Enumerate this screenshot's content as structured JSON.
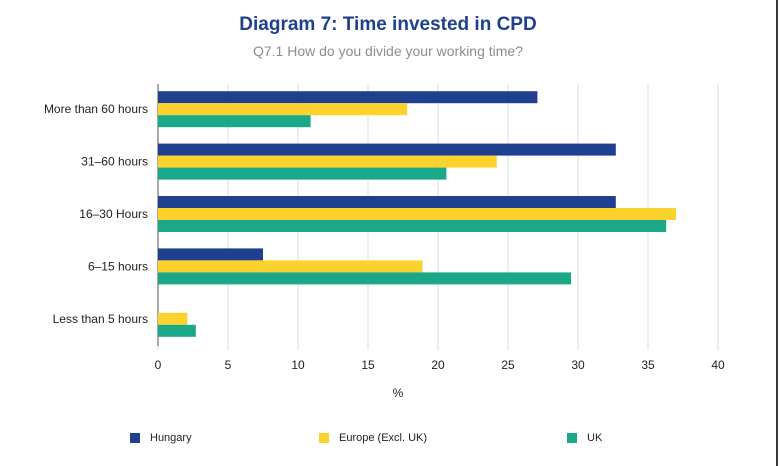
{
  "chart_data": {
    "type": "bar",
    "orientation": "horizontal",
    "title": "Diagram 7: Time invested in CPD",
    "subtitle": "Q7.1 How do you divide your working time?",
    "xlabel": "%",
    "ylabel": "",
    "xlim": [
      0,
      40
    ],
    "xticks": [
      0,
      5,
      10,
      15,
      20,
      25,
      30,
      35,
      40
    ],
    "grid": "vertical",
    "legend_position": "bottom",
    "categories": [
      "More than 60 hours",
      "31–60 hours",
      "16–30 Hours",
      "6–15 hours",
      "Less than 5 hours"
    ],
    "series": [
      {
        "name": "Hungary",
        "color": "#1f3f8f",
        "values": [
          27.1,
          32.7,
          32.7,
          7.5,
          0
        ]
      },
      {
        "name": "Europe (Excl. UK)",
        "color": "#fcd22e",
        "values": [
          17.8,
          24.2,
          37.0,
          18.9,
          2.1
        ]
      },
      {
        "name": "UK",
        "color": "#1aa889",
        "values": [
          10.9,
          20.6,
          36.3,
          29.5,
          2.7
        ]
      }
    ]
  }
}
